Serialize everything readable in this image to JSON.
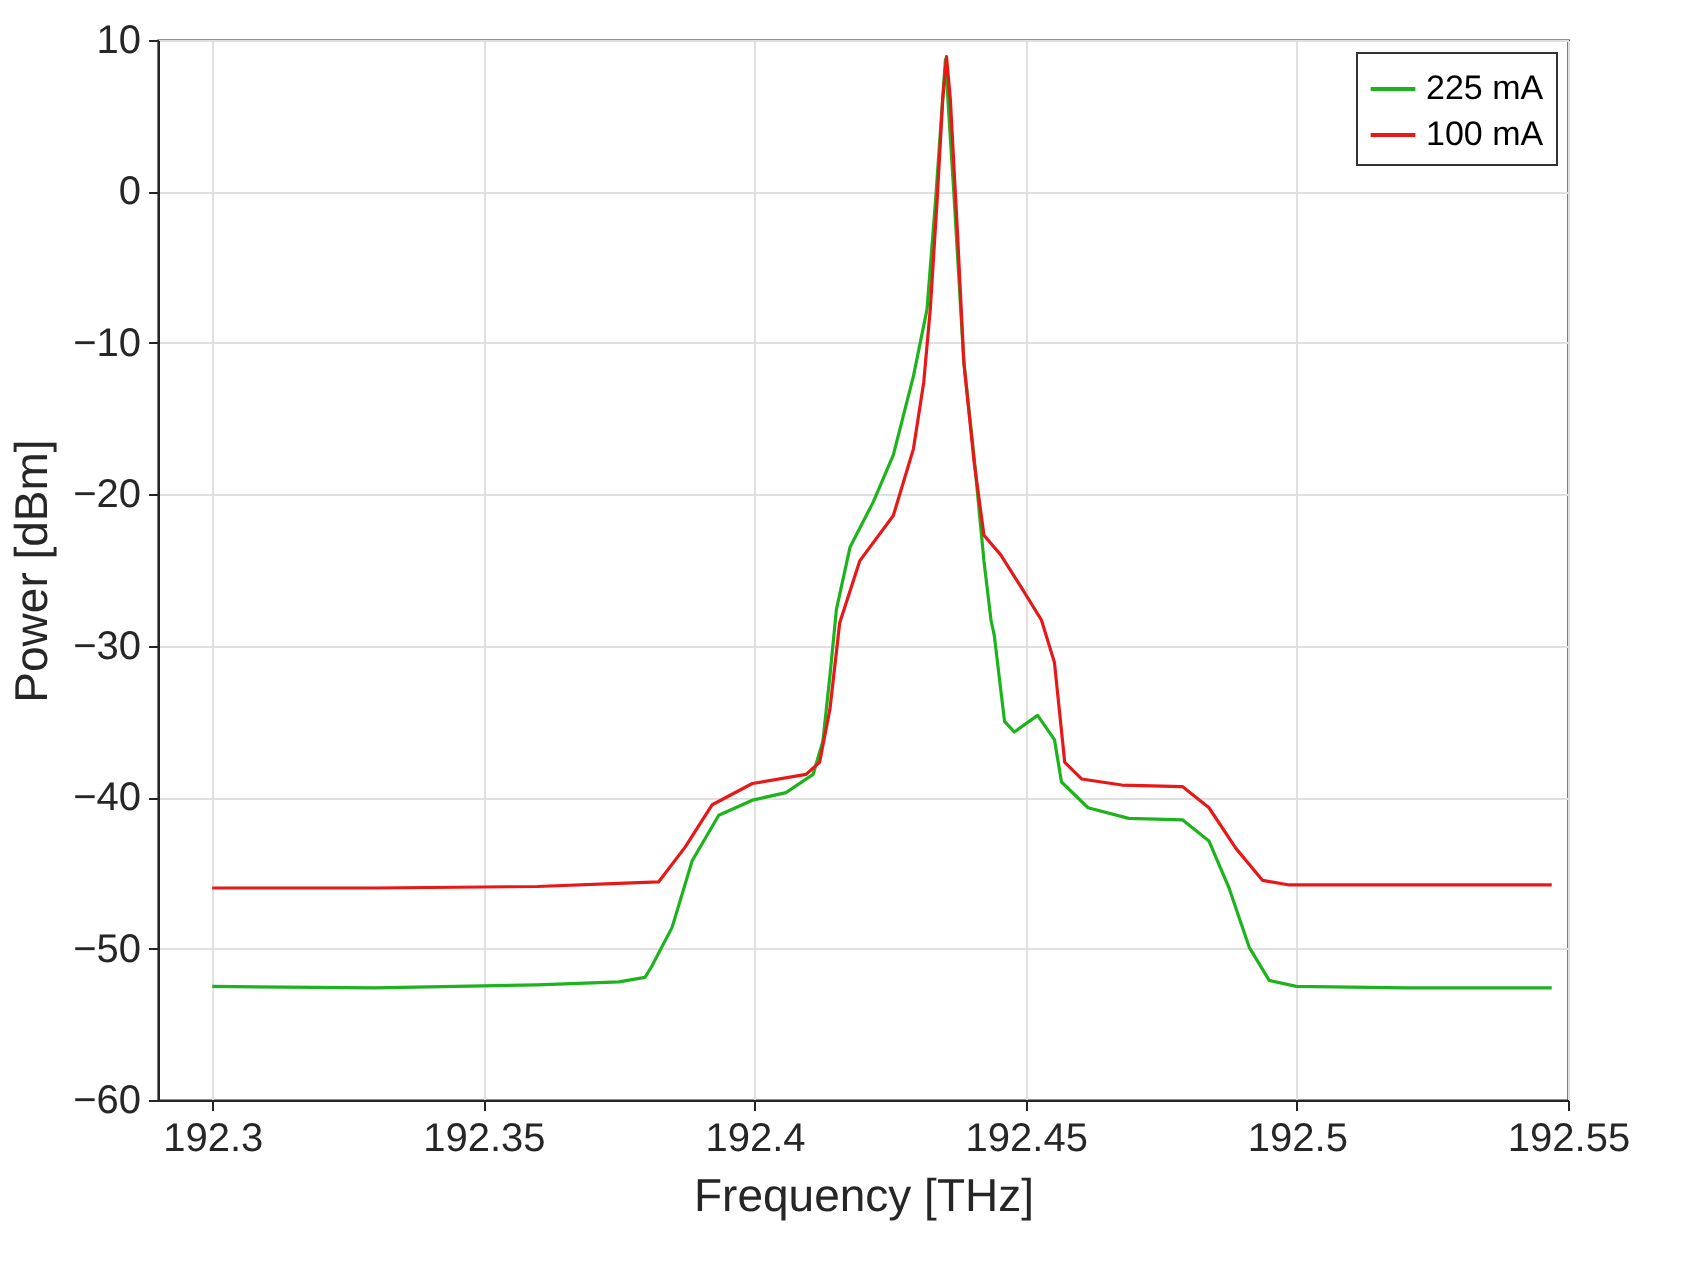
{
  "chart_data": {
    "type": "line",
    "xlabel": "Frequency [THz]",
    "ylabel": "Power [dBm]",
    "xlim": [
      192.29,
      192.55
    ],
    "xticks": [
      192.3,
      192.35,
      192.4,
      192.45,
      192.5,
      192.55
    ],
    "ylim": [
      -60,
      10
    ],
    "yticks": [
      -60,
      -50,
      -40,
      -30,
      -20,
      -10,
      0,
      10
    ],
    "grid": true,
    "legend": "top right",
    "line_style": "solid",
    "marker": "none",
    "series": [
      {
        "name": "225 mA",
        "color": "#1db31d",
        "x": [
          192.3,
          192.33,
          192.36,
          192.375,
          192.3798,
          192.381,
          192.3848,
          192.3885,
          192.3934,
          192.3996,
          192.4058,
          192.4108,
          192.4126,
          192.4139,
          192.4151,
          192.4176,
          192.4219,
          192.4256,
          192.4293,
          192.4318,
          192.4334,
          192.4352,
          192.4368,
          192.4386,
          192.4405,
          192.4423,
          192.4436,
          192.4442,
          192.4461,
          192.4479,
          192.4522,
          192.4553,
          192.4566,
          192.4615,
          192.469,
          192.4789,
          192.4838,
          192.4875,
          192.4912,
          192.4949,
          192.4999,
          192.52,
          192.547
        ],
        "values": [
          -52.5,
          -52.6,
          -52.4,
          -52.2,
          -51.9,
          -51.2,
          -48.6,
          -44.2,
          -41.2,
          -40.2,
          -39.7,
          -38.5,
          -36.3,
          -32,
          -27.6,
          -23.5,
          -20.5,
          -17.4,
          -12.2,
          -7.8,
          -0.5,
          8.7,
          -0.4,
          -11.3,
          -17.6,
          -24.4,
          -28.3,
          -29.3,
          -35,
          -35.7,
          -34.6,
          -36.2,
          -39,
          -40.7,
          -41.4,
          -41.5,
          -42.9,
          -46,
          -49.9,
          -52.1,
          -52.5,
          -52.6,
          -52.6
        ]
      },
      {
        "name": "100 mA",
        "color": "#e81818",
        "x": [
          192.3,
          192.33,
          192.36,
          192.3749,
          192.3823,
          192.3872,
          192.3922,
          192.3996,
          192.4095,
          192.412,
          192.4139,
          192.4157,
          192.4194,
          192.4256,
          192.4293,
          192.4312,
          192.4324,
          192.4337,
          192.4347,
          192.4354,
          192.4361,
          192.4374,
          192.4386,
          192.4405,
          192.4423,
          192.4454,
          192.4491,
          192.4529,
          192.4553,
          192.4572,
          192.4603,
          192.4677,
          192.4789,
          192.4838,
          192.4888,
          192.4937,
          192.4986,
          192.52,
          192.547
        ],
        "values": [
          -46,
          -46,
          -45.9,
          -45.7,
          -45.6,
          -43.3,
          -40.5,
          -39.1,
          -38.5,
          -37.7,
          -34.2,
          -28.5,
          -24.4,
          -21.4,
          -17,
          -12.6,
          -7.8,
          -0.4,
          6.1,
          8.9,
          6.1,
          -2.6,
          -11.3,
          -17.9,
          -22.7,
          -24,
          -26.1,
          -28.3,
          -31.1,
          -37.7,
          -38.8,
          -39.2,
          -39.3,
          -40.7,
          -43.4,
          -45.5,
          -45.8,
          -45.8,
          -45.8
        ]
      }
    ]
  }
}
